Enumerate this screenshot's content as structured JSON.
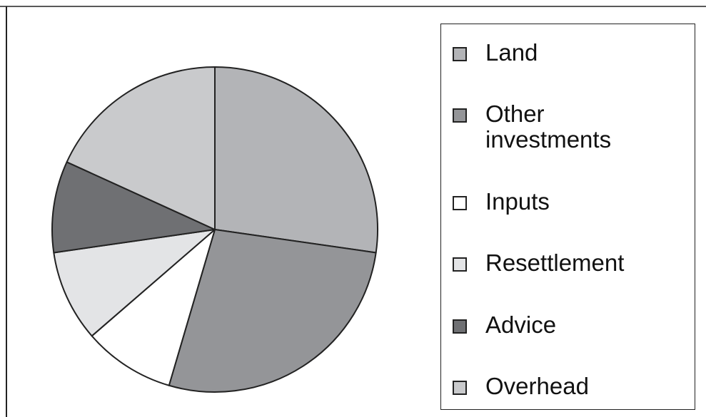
{
  "chart_data": {
    "type": "pie",
    "categories": [
      "Land",
      "Other investments",
      "Inputs",
      "Resettlement",
      "Advice",
      "Overhead"
    ],
    "values": [
      27,
      27,
      9,
      9,
      9,
      18
    ],
    "colors": [
      "#b3b4b7",
      "#949598",
      "#ffffff",
      "#e3e4e6",
      "#6f7073",
      "#c9cacc"
    ]
  }
}
